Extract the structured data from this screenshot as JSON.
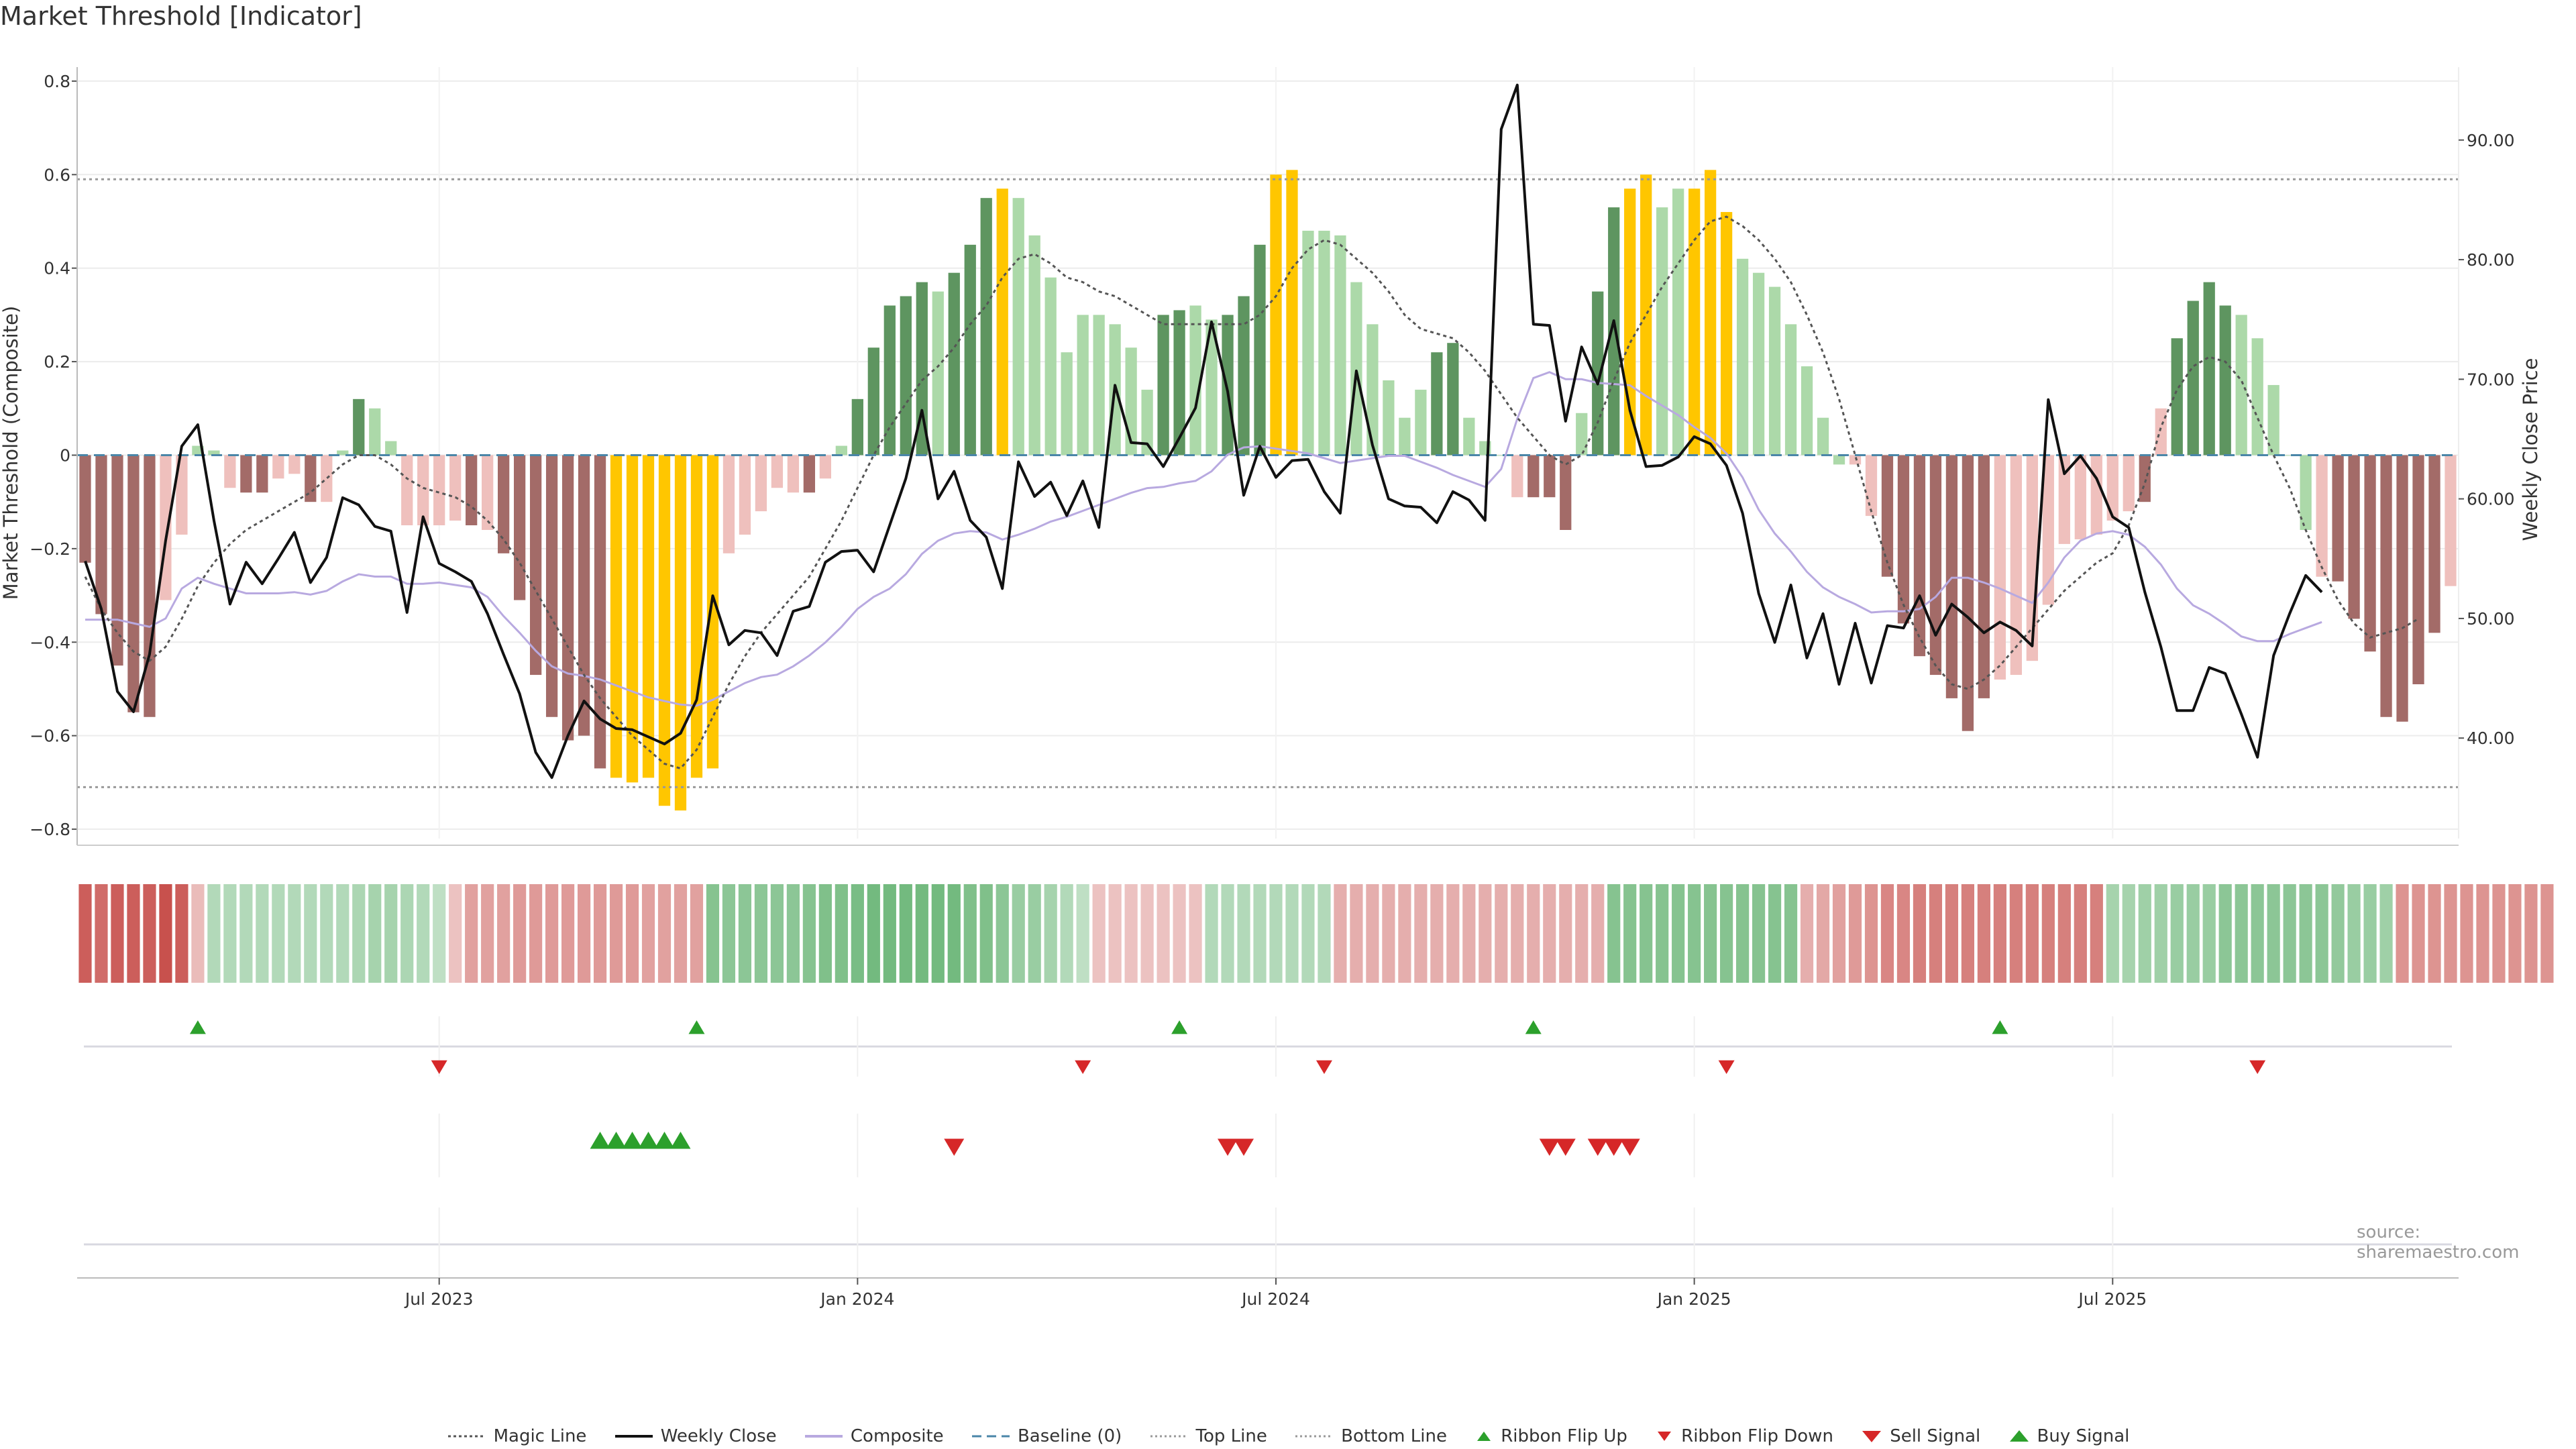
{
  "title": "Market Threshold [Indicator]",
  "source": "source: sharemaestro.com",
  "colors": {
    "strong_up": "#5e9560",
    "weak_up": "#acd9a9",
    "strong_down": "#a36b68",
    "weak_down": "#efc0bd",
    "extreme": "#ffc600",
    "weekly_close": "#111111",
    "composite": "#b8a9e0",
    "magic_line": "#555555",
    "baseline": "#4a86a8",
    "threshold_line": "#999999",
    "buy": "#2ca02c",
    "sell": "#d62728"
  },
  "chart_data": {
    "type": "bar",
    "x_axis": {
      "tick_labels": [
        "Jul 2023",
        "Jan 2024",
        "Jul 2024",
        "Jan 2025",
        "Jul 2025"
      ],
      "tick_index": [
        22,
        48,
        74,
        100,
        126
      ]
    },
    "left_axis": {
      "label": "Market Threshold (Composite)",
      "range": [
        -0.82,
        0.83
      ],
      "ticks": [
        "0.8",
        "0.6",
        "0.4",
        "0.2",
        "0",
        "−0.2",
        "−0.4",
        "−0.6",
        "−0.8"
      ],
      "tick_values": [
        0.8,
        0.6,
        0.4,
        0.2,
        0,
        -0.2,
        -0.4,
        -0.6,
        -0.8
      ]
    },
    "right_axis": {
      "label": "Weekly Close Price",
      "range": [
        31.6,
        96.1
      ],
      "ticks": [
        "90.00",
        "80.00",
        "70.00",
        "60.00",
        "50.00",
        "40.00"
      ],
      "tick_values": [
        90,
        80,
        70,
        60,
        50,
        40
      ]
    },
    "top_line": 0.59,
    "bottom_line": -0.71,
    "baseline": 0,
    "composite_bars": [
      -0.23,
      -0.34,
      -0.45,
      -0.55,
      -0.56,
      -0.31,
      -0.17,
      0.02,
      0.01,
      -0.07,
      -0.08,
      -0.08,
      -0.05,
      -0.04,
      -0.1,
      -0.1,
      0.01,
      0.12,
      0.1,
      0.03,
      -0.15,
      -0.15,
      -0.15,
      -0.14,
      -0.15,
      -0.16,
      -0.21,
      -0.31,
      -0.47,
      -0.56,
      -0.61,
      -0.6,
      -0.67,
      -0.69,
      -0.7,
      -0.69,
      -0.75,
      -0.76,
      -0.69,
      -0.67,
      -0.21,
      -0.17,
      -0.12,
      -0.07,
      -0.08,
      -0.08,
      -0.05,
      0.02,
      0.12,
      0.23,
      0.32,
      0.34,
      0.37,
      0.35,
      0.39,
      0.45,
      0.55,
      0.57,
      0.55,
      0.47,
      0.38,
      0.22,
      0.3,
      0.3,
      0.28,
      0.23,
      0.14,
      0.3,
      0.31,
      0.32,
      0.29,
      0.3,
      0.34,
      0.45,
      0.6,
      0.61,
      0.48,
      0.48,
      0.47,
      0.37,
      0.28,
      0.16,
      0.08,
      0.14,
      0.22,
      0.24,
      0.08,
      0.03,
      0.0,
      -0.09,
      -0.09,
      -0.09,
      -0.16,
      0.09,
      0.35,
      0.53,
      0.57,
      0.6,
      0.53,
      0.57,
      0.57,
      0.61,
      0.52,
      0.42,
      0.39,
      0.36,
      0.28,
      0.19,
      0.08,
      -0.02,
      -0.02,
      -0.13,
      -0.26,
      -0.36,
      -0.43,
      -0.47,
      -0.52,
      -0.59,
      -0.52,
      -0.48,
      -0.47,
      -0.44,
      -0.32,
      -0.19,
      -0.18,
      -0.17,
      -0.14,
      -0.12,
      -0.1,
      0.1,
      0.25,
      0.33,
      0.37,
      0.32,
      0.3,
      0.25,
      0.15,
      0.0,
      -0.16,
      -0.26,
      -0.27,
      -0.35,
      -0.42,
      -0.56,
      -0.57,
      -0.49,
      -0.38,
      -0.28
    ],
    "bar_class": [
      "sd",
      "sd",
      "sd",
      "sd",
      "sd",
      "wd",
      "wd",
      "wu",
      "wu",
      "wd",
      "sd",
      "sd",
      "wd",
      "wd",
      "sd",
      "wd",
      "wu",
      "su",
      "wu",
      "wu",
      "wd",
      "wd",
      "wd",
      "wd",
      "sd",
      "wd",
      "sd",
      "sd",
      "sd",
      "sd",
      "sd",
      "sd",
      "sd",
      "ex",
      "ex",
      "ex",
      "ex",
      "ex",
      "ex",
      "ex",
      "wd",
      "wd",
      "wd",
      "wd",
      "wd",
      "sd",
      "wd",
      "wu",
      "su",
      "su",
      "su",
      "su",
      "su",
      "wu",
      "su",
      "su",
      "su",
      "ex",
      "wu",
      "wu",
      "wu",
      "wu",
      "wu",
      "wu",
      "wu",
      "wu",
      "wu",
      "su",
      "su",
      "wu",
      "wu",
      "su",
      "su",
      "su",
      "ex",
      "ex",
      "wu",
      "wu",
      "wu",
      "wu",
      "wu",
      "wu",
      "wu",
      "wu",
      "su",
      "su",
      "wu",
      "wu",
      "wu",
      "wd",
      "sd",
      "sd",
      "sd",
      "wu",
      "su",
      "su",
      "ex",
      "ex",
      "wu",
      "wu",
      "ex",
      "ex",
      "ex",
      "wu",
      "wu",
      "wu",
      "wu",
      "wu",
      "wu",
      "wu",
      "wd",
      "wd",
      "sd",
      "sd",
      "sd",
      "sd",
      "sd",
      "sd",
      "sd",
      "wd",
      "wd",
      "wd",
      "wd",
      "wd",
      "wd",
      "wd",
      "wd",
      "wd",
      "sd",
      "wd",
      "su",
      "su",
      "su",
      "su",
      "wu",
      "wu",
      "wu",
      "wu",
      "wu",
      "wd",
      "sd",
      "sd",
      "sd",
      "sd",
      "sd",
      "sd",
      "sd",
      "wd"
    ],
    "series": [
      {
        "name": "Weekly Close",
        "axis": "right",
        "values": [
          54.8,
          50.8,
          43.9,
          42.2,
          47.0,
          56.5,
          64.4,
          66.2,
          58.2,
          51.2,
          54.7,
          52.9,
          55.0,
          57.2,
          53.0,
          55.1,
          60.1,
          59.5,
          57.7,
          57.3,
          50.5,
          58.5,
          54.6,
          53.9,
          53.1,
          50.4,
          47.0,
          43.7,
          38.8,
          36.7,
          40.2,
          43.1,
          41.6,
          40.8,
          40.7,
          40.1,
          39.5,
          40.4,
          43.2,
          51.9,
          47.8,
          49.0,
          48.8,
          46.9,
          50.6,
          51.0,
          54.7,
          55.6,
          55.7,
          53.9,
          57.8,
          61.7,
          67.4,
          60.0,
          62.3,
          58.2,
          56.8,
          52.5,
          63.1,
          60.2,
          61.4,
          58.6,
          61.5,
          57.6,
          69.5,
          64.7,
          64.6,
          62.7,
          65.1,
          67.6,
          74.8,
          69.0,
          60.3,
          64.4,
          61.8,
          63.2,
          63.3,
          60.6,
          58.8,
          70.7,
          64.5,
          60.0,
          59.4,
          59.3,
          58.0,
          60.6,
          59.9,
          58.2,
          90.9,
          94.6,
          74.6,
          74.5,
          66.5,
          72.7,
          69.6,
          74.9,
          67.4,
          62.7,
          62.8,
          63.5,
          65.2,
          64.6,
          62.8,
          58.8,
          52.1,
          48.0,
          52.8,
          46.7,
          50.4,
          44.5,
          49.6,
          44.6,
          49.4,
          49.2,
          51.9,
          48.6,
          51.2,
          50.1,
          48.8,
          49.7,
          49.0,
          47.7,
          68.3,
          62.1,
          63.6,
          61.7,
          58.5,
          57.6,
          52.2,
          47.6,
          42.3,
          42.3,
          45.9,
          45.4,
          42.0,
          38.4,
          46.9,
          50.4,
          53.6,
          52.2
        ]
      },
      {
        "name": "Composite",
        "axis": "right",
        "values": [
          49.9,
          49.9,
          49.9,
          49.6,
          49.3,
          50.0,
          52.5,
          53.4,
          52.9,
          52.5,
          52.1,
          52.1,
          52.1,
          52.2,
          52.0,
          52.3,
          53.1,
          53.7,
          53.5,
          53.5,
          52.9,
          52.9,
          53.0,
          52.8,
          52.6,
          51.8,
          50.2,
          48.8,
          47.3,
          46.0,
          45.4,
          45.2,
          44.9,
          44.4,
          43.9,
          43.4,
          43.1,
          42.8,
          42.7,
          43.2,
          43.9,
          44.6,
          45.1,
          45.3,
          46.0,
          46.9,
          48.0,
          49.3,
          50.8,
          51.8,
          52.5,
          53.7,
          55.4,
          56.5,
          57.1,
          57.3,
          57.2,
          56.6,
          57.0,
          57.5,
          58.1,
          58.5,
          59.0,
          59.5,
          60.0,
          60.5,
          60.9,
          61.0,
          61.3,
          61.5,
          62.3,
          63.7,
          64.3,
          64.4,
          64.2,
          64.0,
          63.8,
          63.4,
          63.0,
          63.2,
          63.4,
          63.6,
          63.6,
          63.1,
          62.6,
          62.0,
          61.5,
          61.0,
          62.5,
          66.7,
          70.1,
          70.6,
          70.0,
          70.0,
          69.7,
          69.6,
          69.5,
          68.6,
          67.8,
          67.0,
          66.0,
          65.1,
          63.8,
          61.8,
          59.1,
          57.1,
          55.6,
          53.9,
          52.6,
          51.8,
          51.2,
          50.5,
          50.6,
          50.6,
          50.8,
          51.8,
          53.4,
          53.4,
          53.0,
          52.5,
          51.9,
          51.3,
          53.0,
          55.1,
          56.5,
          57.1,
          57.3,
          57.0,
          56.0,
          54.5,
          52.5,
          51.1,
          50.4,
          49.5,
          48.5,
          48.1,
          48.1,
          48.7,
          49.2,
          49.7
        ]
      },
      {
        "name": "Magic Line",
        "axis": "left",
        "values": [
          -0.26,
          -0.33,
          -0.38,
          -0.42,
          -0.44,
          -0.41,
          -0.35,
          -0.28,
          -0.23,
          -0.19,
          -0.16,
          -0.14,
          -0.12,
          -0.1,
          -0.08,
          -0.05,
          -0.02,
          0.0,
          0.0,
          -0.02,
          -0.05,
          -0.07,
          -0.08,
          -0.09,
          -0.11,
          -0.14,
          -0.18,
          -0.23,
          -0.29,
          -0.35,
          -0.41,
          -0.47,
          -0.52,
          -0.56,
          -0.6,
          -0.63,
          -0.66,
          -0.67,
          -0.63,
          -0.56,
          -0.49,
          -0.43,
          -0.38,
          -0.34,
          -0.3,
          -0.26,
          -0.2,
          -0.14,
          -0.07,
          0.0,
          0.06,
          0.11,
          0.16,
          0.19,
          0.23,
          0.28,
          0.32,
          0.38,
          0.42,
          0.43,
          0.41,
          0.38,
          0.37,
          0.35,
          0.34,
          0.32,
          0.3,
          0.28,
          0.28,
          0.28,
          0.28,
          0.28,
          0.28,
          0.3,
          0.34,
          0.4,
          0.44,
          0.46,
          0.45,
          0.42,
          0.39,
          0.35,
          0.3,
          0.27,
          0.26,
          0.25,
          0.22,
          0.18,
          0.13,
          0.08,
          0.04,
          0.0,
          -0.02,
          0.0,
          0.07,
          0.16,
          0.24,
          0.3,
          0.36,
          0.41,
          0.46,
          0.5,
          0.51,
          0.49,
          0.46,
          0.42,
          0.37,
          0.3,
          0.22,
          0.12,
          0.0,
          -0.12,
          -0.23,
          -0.32,
          -0.39,
          -0.45,
          -0.49,
          -0.5,
          -0.48,
          -0.45,
          -0.41,
          -0.37,
          -0.33,
          -0.29,
          -0.26,
          -0.23,
          -0.21,
          -0.15,
          -0.06,
          0.06,
          0.14,
          0.19,
          0.21,
          0.2,
          0.16,
          0.08,
          0.0,
          -0.07,
          -0.16,
          -0.24,
          -0.31,
          -0.36,
          -0.39,
          -0.38,
          -0.37,
          -0.35
        ]
      }
    ],
    "ribbon": {
      "values": [
        -0.9,
        -0.8,
        -0.9,
        -0.9,
        -0.9,
        -1.0,
        -0.9,
        -0.2,
        0.3,
        0.3,
        0.3,
        0.3,
        0.3,
        0.3,
        0.3,
        0.3,
        0.3,
        0.35,
        0.4,
        0.4,
        0.35,
        0.3,
        0.2,
        -0.15,
        -0.4,
        -0.4,
        -0.4,
        -0.45,
        -0.45,
        -0.45,
        -0.45,
        -0.45,
        -0.45,
        -0.45,
        -0.45,
        -0.4,
        -0.4,
        -0.4,
        -0.4,
        0.65,
        0.6,
        0.6,
        0.6,
        0.6,
        0.6,
        0.65,
        0.7,
        0.7,
        0.75,
        0.8,
        0.8,
        0.8,
        0.8,
        0.8,
        0.8,
        0.7,
        0.7,
        0.6,
        0.5,
        0.5,
        0.4,
        0.3,
        0.2,
        -0.15,
        -0.15,
        -0.15,
        -0.15,
        -0.15,
        -0.15,
        -0.15,
        0.3,
        0.3,
        0.3,
        0.3,
        0.3,
        0.3,
        0.3,
        0.3,
        -0.3,
        -0.3,
        -0.3,
        -0.3,
        -0.3,
        -0.3,
        -0.3,
        -0.3,
        -0.3,
        -0.3,
        -0.3,
        -0.3,
        -0.3,
        -0.3,
        -0.3,
        -0.3,
        -0.3,
        0.65,
        0.65,
        0.65,
        0.65,
        0.65,
        0.65,
        0.65,
        0.65,
        0.65,
        0.65,
        0.65,
        0.65,
        -0.3,
        -0.35,
        -0.4,
        -0.45,
        -0.5,
        -0.6,
        -0.6,
        -0.65,
        -0.65,
        -0.65,
        -0.65,
        -0.65,
        -0.65,
        -0.65,
        -0.65,
        -0.65,
        -0.65,
        -0.65,
        -0.65,
        0.4,
        0.4,
        0.45,
        0.45,
        0.5,
        0.5,
        0.5,
        0.6,
        0.6,
        0.6,
        0.6,
        0.6,
        0.6,
        0.6,
        0.55,
        0.5,
        0.5,
        0.45,
        -0.5,
        -0.5,
        -0.5,
        -0.5,
        -0.5,
        -0.5,
        -0.5,
        -0.5,
        -0.5,
        -0.5
      ]
    },
    "ribbon_flip_up": [
      7,
      38,
      68,
      90,
      119
    ],
    "ribbon_flip_down": [
      22,
      62,
      77,
      102,
      135
    ],
    "buy_signal": [
      32,
      33,
      34,
      35,
      36,
      37
    ],
    "sell_signal": [
      54,
      71,
      72,
      91,
      92,
      94,
      95,
      96
    ],
    "legend": [
      "Magic Line",
      "Weekly Close",
      "Composite",
      "Baseline (0)",
      "Top Line",
      "Bottom Line",
      "Ribbon Flip Up",
      "Ribbon Flip Down",
      "Sell Signal",
      "Buy Signal"
    ]
  }
}
